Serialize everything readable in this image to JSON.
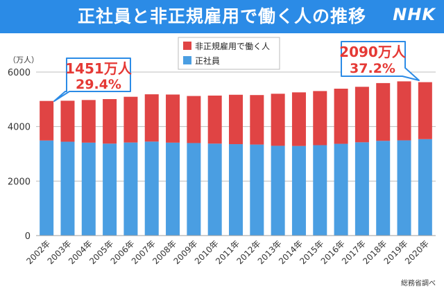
{
  "header": {
    "title": "正社員と非正規雇用で働く人の推移",
    "brand": "NHK"
  },
  "colors": {
    "header_bg": "#2b8be6",
    "regular": "#4a9ee2",
    "non_regular": "#e04444",
    "callout_border": "#2b8be6",
    "callout_text": "#e53935"
  },
  "callouts": {
    "left": {
      "line1": "1451万人",
      "line2": "29.4%"
    },
    "right": {
      "line1": "2090万人",
      "line2": "37.2%"
    }
  },
  "source": "総務省調べ",
  "chart_data": {
    "type": "bar",
    "stacked": true,
    "unit_label": "（万人）",
    "ylim": [
      0,
      6000
    ],
    "yticks": [
      0,
      2000,
      4000,
      6000
    ],
    "grid": "horizontal",
    "legend_position": "top-center",
    "categories": [
      "2002年",
      "2003年",
      "2004年",
      "2005年",
      "2006年",
      "2007年",
      "2008年",
      "2009年",
      "2010年",
      "2011年",
      "2012年",
      "2013年",
      "2014年",
      "2015年",
      "2016年",
      "2017年",
      "2018年",
      "2019年",
      "2020年"
    ],
    "series": [
      {
        "name": "正社員",
        "color": "#4a9ee2",
        "values": [
          3489,
          3444,
          3410,
          3374,
          3415,
          3449,
          3410,
          3395,
          3374,
          3355,
          3340,
          3294,
          3288,
          3317,
          3367,
          3423,
          3476,
          3494,
          3539
        ]
      },
      {
        "name": "非正規雇用で働く人",
        "color": "#e04444",
        "values": [
          1451,
          1504,
          1564,
          1634,
          1678,
          1735,
          1765,
          1727,
          1763,
          1812,
          1816,
          1910,
          1967,
          1986,
          2023,
          2036,
          2120,
          2165,
          2090
        ]
      }
    ]
  }
}
